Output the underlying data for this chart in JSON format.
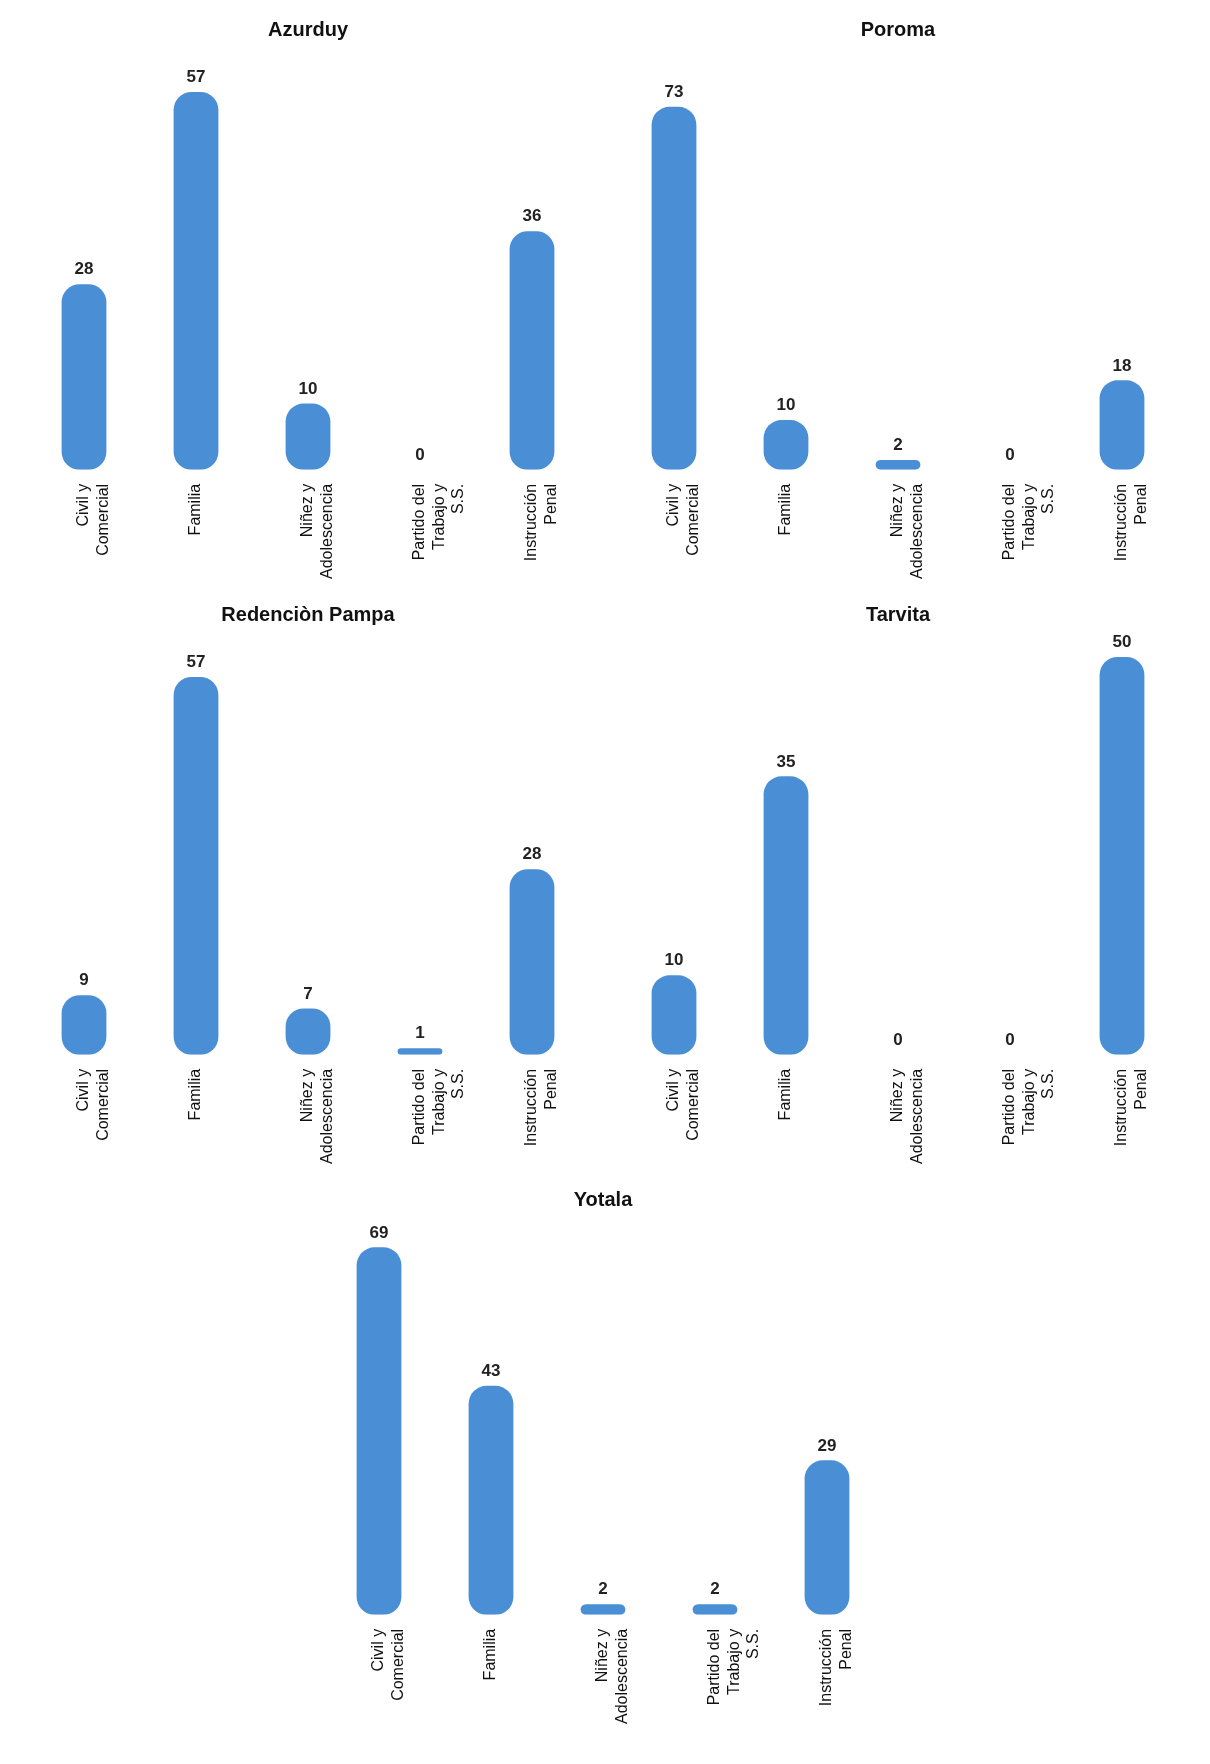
{
  "chart_data": [
    {
      "type": "bar",
      "title": "Azurduy",
      "categories": [
        "Civil y Comercial",
        "Familia",
        "Niñez y Adolescencia",
        "Partido del Trabajo y S.S.",
        "Instrucción Penal"
      ],
      "values": [
        28,
        57,
        10,
        0,
        36
      ],
      "color": "#4a8fd6",
      "data_labels": true,
      "tick_labels": "x",
      "grid": false,
      "legend": false
    },
    {
      "type": "bar",
      "title": "Poroma",
      "categories": [
        "Civil y Comercial",
        "Familia",
        "Niñez y Adolescencia",
        "Partido del Trabajo y S.S.",
        "Instrucción Penal"
      ],
      "values": [
        73,
        10,
        2,
        0,
        18
      ],
      "color": "#4a8fd6",
      "data_labels": true,
      "tick_labels": "x",
      "grid": false,
      "legend": false
    },
    {
      "type": "bar",
      "title": "Redenciòn Pampa",
      "categories": [
        "Civil y Comercial",
        "Familia",
        "Niñez y Adolescencia",
        "Partido del Trabajo y S.S.",
        "Instrucción Penal"
      ],
      "values": [
        9,
        57,
        7,
        1,
        28
      ],
      "color": "#4a8fd6",
      "data_labels": true,
      "tick_labels": "x",
      "grid": false,
      "legend": false
    },
    {
      "type": "bar",
      "title": "Tarvita",
      "categories": [
        "Civil y Comercial",
        "Familia",
        "Niñez y Adolescencia",
        "Partido del Trabajo y S.S.",
        "Instrucción Penal"
      ],
      "values": [
        10,
        35,
        0,
        0,
        50
      ],
      "color": "#4a8fd6",
      "data_labels": true,
      "tick_labels": "x",
      "grid": false,
      "legend": false
    },
    {
      "type": "bar",
      "title": "Yotala",
      "categories": [
        "Civil y Comercial",
        "Familia",
        "Niñez y Adolescencia",
        "Partido del Trabajo y S.S.",
        "Instrucción Penal"
      ],
      "values": [
        69,
        43,
        2,
        2,
        29
      ],
      "color": "#4a8fd6",
      "data_labels": true,
      "tick_labels": "x",
      "grid": false,
      "legend": false
    }
  ]
}
